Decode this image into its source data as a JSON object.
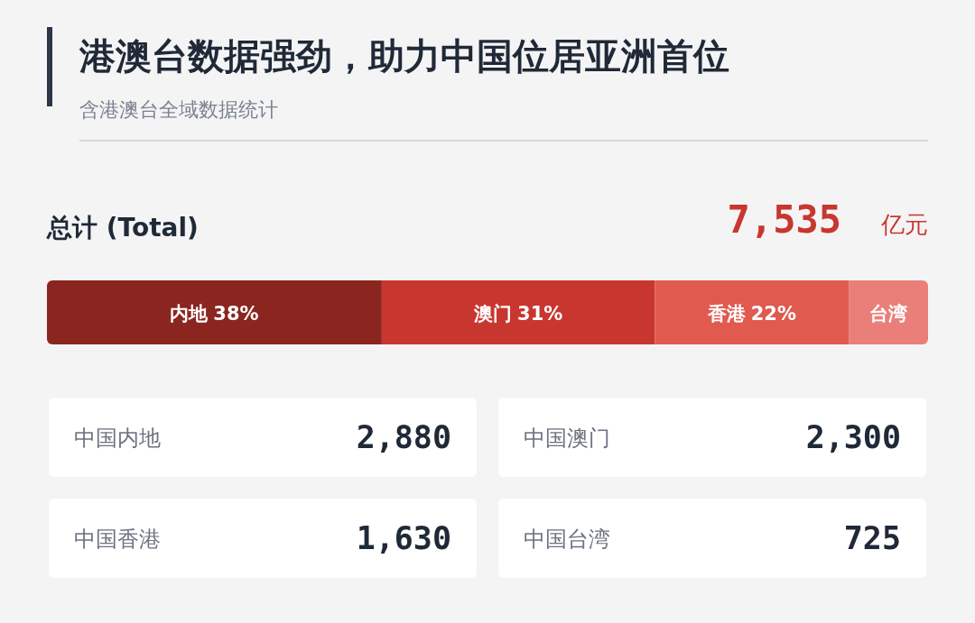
{
  "chart_data": [
    {
      "type": "bar",
      "orientation": "horizontal",
      "stacked": true,
      "title": "港澳台数据强劲，助力中国位居亚洲首位",
      "subtitle": "含港澳台全域数据统计",
      "annotations": [
        "总计 (Total)",
        "7,535",
        "亿元"
      ],
      "categories": [
        null
      ],
      "series": [
        {
          "name": "内地",
          "color": "#8b2520",
          "values": [
            38
          ],
          "value_labels": [
            "38%"
          ]
        },
        {
          "name": "澳门",
          "color": "#c8372f",
          "values": [
            31
          ],
          "value_labels": [
            "31%"
          ]
        },
        {
          "name": "香港",
          "color": "#e05a50",
          "values": [
            22
          ],
          "value_labels": [
            "22%"
          ]
        },
        {
          "name": "台湾",
          "color": "#ea7f7a",
          "values": [
            9
          ],
          "value_labels": [
            null
          ]
        }
      ]
    },
    {
      "type": "other",
      "categories": [
        "中国内地"
      ],
      "values": [
        2880
      ],
      "value_labels": [
        "2,880"
      ]
    },
    {
      "type": "other",
      "categories": [
        "中国澳门"
      ],
      "values": [
        2300
      ],
      "value_labels": [
        "2,300"
      ]
    },
    {
      "type": "other",
      "categories": [
        "中国香港"
      ],
      "values": [
        1630
      ],
      "value_labels": [
        "1,630"
      ]
    },
    {
      "type": "other",
      "categories": [
        "中国台湾"
      ],
      "values": [
        725
      ],
      "value_labels": [
        "725"
      ]
    }
  ]
}
